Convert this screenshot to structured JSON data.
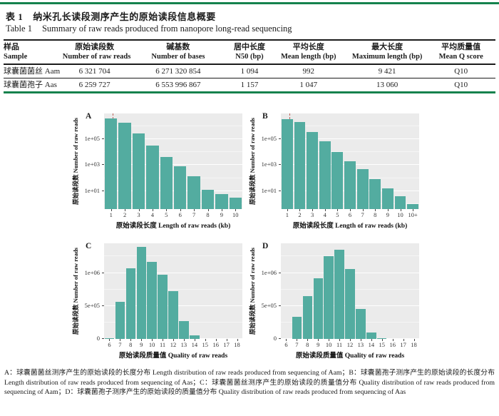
{
  "colors": {
    "accent_green": "#15824d",
    "bar_teal": "#53aca0",
    "plot_bg": "#ebebeb",
    "n50_marker_red": "#b5493f"
  },
  "table": {
    "title_cn_label": "表 1",
    "title_cn": "纳米孔长读段测序产生的原始读段信息概要",
    "title_en_label": "Table 1",
    "title_en": "Summary of raw reads produced from nanopore long-read sequencing",
    "columns": [
      {
        "cn": "样品",
        "en": "Sample"
      },
      {
        "cn": "原始读段数",
        "en": "Number of raw reads"
      },
      {
        "cn": "碱基数",
        "en": "Number of bases"
      },
      {
        "cn": "居中长度",
        "en": "N50 (bp)"
      },
      {
        "cn": "平均长度",
        "en": "Mean length (bp)"
      },
      {
        "cn": "最大长度",
        "en": "Maximum length (bp)"
      },
      {
        "cn": "平均质量值",
        "en": "Mean Q score"
      }
    ],
    "rows": [
      [
        "球囊菌菌丝 Aam",
        "6 321 704",
        "6 271 320 854",
        "1 094",
        "992",
        "9 421",
        "Q10"
      ],
      [
        "球囊菌孢子 Aas",
        "6 259 727",
        "6 553 996 867",
        "1 157",
        "1 047",
        "13 060",
        "Q10"
      ]
    ]
  },
  "chart_data": [
    {
      "panel": "A",
      "type": "bar",
      "yscale": "log",
      "categories": [
        "1",
        "2",
        "3",
        "4",
        "5",
        "6",
        "7",
        "8",
        "9",
        "10"
      ],
      "values": [
        4000000,
        2000000,
        270000,
        31000,
        4400,
        780,
        140,
        13,
        6,
        3
      ],
      "xlabel_cn": "原始读段长度",
      "xlabel_en": "Length of raw reads (kb)",
      "ylabel_cn": "原始读段数",
      "ylabel_en": "Number of raw reads",
      "yticks": [
        {
          "value": 10,
          "label": "1e+01"
        },
        {
          "value": 1000,
          "label": "1e+03"
        },
        {
          "value": 100000,
          "label": "1e+05"
        }
      ],
      "yminor": [
        1,
        100,
        10000,
        1000000
      ],
      "ylim_exp": [
        -0.4,
        7.0
      ],
      "n50_marker_kb": 1.094
    },
    {
      "panel": "B",
      "type": "bar",
      "yscale": "log",
      "categories": [
        "1",
        "2",
        "3",
        "4",
        "5",
        "6",
        "7",
        "8",
        "9",
        "10",
        "10+"
      ],
      "values": [
        3600000,
        2200000,
        380000,
        66000,
        9800,
        1900,
        470,
        87,
        15,
        4,
        1
      ],
      "xlabel_cn": "原始读段长度",
      "xlabel_en": "Length of raw reads (kb)",
      "ylabel_cn": "原始读段数",
      "ylabel_en": "Number of raw reads",
      "yticks": [
        {
          "value": 10,
          "label": "1e+01"
        },
        {
          "value": 1000,
          "label": "1e+03"
        },
        {
          "value": 100000,
          "label": "1e+05"
        }
      ],
      "yminor": [
        1,
        100,
        10000,
        1000000
      ],
      "ylim_exp": [
        -0.4,
        7.0
      ],
      "n50_marker_kb": 1.157
    },
    {
      "panel": "C",
      "type": "bar",
      "yscale": "linear",
      "categories": [
        "6",
        "7",
        "8",
        "9",
        "10",
        "11",
        "12",
        "13",
        "14",
        "15",
        "16",
        "17",
        "18"
      ],
      "values": [
        8000,
        560000,
        1070000,
        1400000,
        1170000,
        970000,
        730000,
        270000,
        50000,
        5000,
        0,
        0,
        0
      ],
      "xlabel_cn": "原始读段质量值",
      "xlabel_en": "Quality of raw reads",
      "ylabel_cn": "原始读段数",
      "ylabel_en": "Number of raw reads",
      "yticks": [
        {
          "value": 0,
          "label": "0"
        },
        {
          "value": 500000,
          "label": "5e+05"
        },
        {
          "value": 1000000,
          "label": "1e+06"
        }
      ],
      "yminor": [
        250000,
        750000,
        1250000
      ],
      "ylim": [
        0,
        1450000
      ]
    },
    {
      "panel": "D",
      "type": "bar",
      "yscale": "linear",
      "categories": [
        "6",
        "7",
        "8",
        "9",
        "10",
        "11",
        "12",
        "13",
        "14",
        "15",
        "16",
        "17",
        "18"
      ],
      "values": [
        0,
        340000,
        650000,
        920000,
        1250000,
        1350000,
        1060000,
        460000,
        100000,
        15000,
        0,
        0,
        0
      ],
      "xlabel_cn": "原始读段质量值",
      "xlabel_en": "Quality of raw reads",
      "ylabel_cn": "原始读段数",
      "ylabel_en": "Number of raw reads",
      "yticks": [
        {
          "value": 0,
          "label": "0"
        },
        {
          "value": 500000,
          "label": "5e+05"
        },
        {
          "value": 1000000,
          "label": "1e+06"
        }
      ],
      "yminor": [
        250000,
        750000,
        1250000
      ],
      "ylim": [
        0,
        1450000
      ]
    }
  ],
  "caption": {
    "text": "A：球囊菌菌丝测序产生的原始读段的长度分布 Length distribution of raw reads produced from sequencing of Aam；B：球囊菌孢子测序产生的原始读段的长度分布 Length distribution of raw reads produced from sequencing of Aas；C：球囊菌菌丝测序产生的原始读段的质量值分布 Quality distribution of raw reads produced from sequencing of Aam；D：球囊菌孢子测序产生的原始读段的质量值分布 Quality distribution of raw reads produced from sequencing of Aas"
  }
}
